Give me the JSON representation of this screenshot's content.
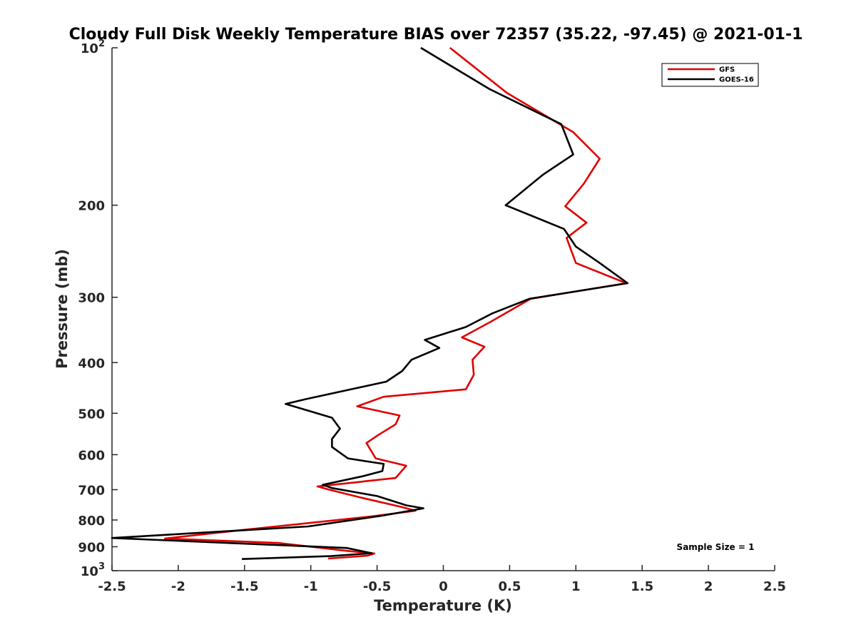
{
  "chart_data": {
    "type": "line",
    "title": "Cloudy Full Disk Weekly Temperature BIAS over 72357 (35.22, -97.45) @ 2021-01-1",
    "xlabel": "Temperature (K)",
    "ylabel": "Pressure (mb)",
    "xlim": [
      -2.5,
      2.5
    ],
    "ylim": [
      100,
      1000
    ],
    "y_scale": "log",
    "y_reversed": true,
    "x_ticks": [
      "-2.5",
      "-2",
      "-1.5",
      "-1",
      "-0.5",
      "0",
      "0.5",
      "1",
      "1.5",
      "2",
      "2.5"
    ],
    "y_ticks": [
      {
        "value": 100,
        "label": "10",
        "sup": "2"
      },
      {
        "value": 200,
        "label": "200",
        "sup": ""
      },
      {
        "value": 300,
        "label": "300",
        "sup": ""
      },
      {
        "value": 400,
        "label": "400",
        "sup": ""
      },
      {
        "value": 500,
        "label": "500",
        "sup": ""
      },
      {
        "value": 600,
        "label": "600",
        "sup": ""
      },
      {
        "value": 700,
        "label": "700",
        "sup": ""
      },
      {
        "value": 800,
        "label": "800",
        "sup": ""
      },
      {
        "value": 900,
        "label": "900",
        "sup": ""
      },
      {
        "value": 1000,
        "label": "10",
        "sup": "3"
      }
    ],
    "legend_position": "top-right",
    "grid": false,
    "annotation": "Sample Size = 1",
    "series": [
      {
        "name": "GFS",
        "color": "#e00000",
        "points": [
          [
            0.05,
            100
          ],
          [
            0.48,
            122
          ],
          [
            0.98,
            145
          ],
          [
            1.18,
            163
          ],
          [
            1.06,
            182
          ],
          [
            0.92,
            201
          ],
          [
            1.08,
            216
          ],
          [
            0.93,
            231
          ],
          [
            1.0,
            258
          ],
          [
            1.38,
            282
          ],
          [
            0.66,
            302
          ],
          [
            0.35,
            335
          ],
          [
            0.14,
            358
          ],
          [
            0.31,
            373
          ],
          [
            0.22,
            395
          ],
          [
            0.23,
            422
          ],
          [
            0.17,
            450
          ],
          [
            -0.45,
            465
          ],
          [
            -0.65,
            485
          ],
          [
            -0.33,
            505
          ],
          [
            -0.36,
            525
          ],
          [
            -0.49,
            550
          ],
          [
            -0.58,
            570
          ],
          [
            -0.51,
            610
          ],
          [
            -0.28,
            630
          ],
          [
            -0.36,
            665
          ],
          [
            -0.95,
            690
          ],
          [
            -0.86,
            700
          ],
          [
            -0.62,
            725
          ],
          [
            -0.32,
            755
          ],
          [
            -0.21,
            768
          ],
          [
            -0.53,
            787
          ],
          [
            -1.55,
            838
          ],
          [
            -2.1,
            868
          ],
          [
            -1.25,
            885
          ],
          [
            -0.7,
            918
          ],
          [
            -0.52,
            927
          ],
          [
            -0.57,
            936
          ],
          [
            -0.87,
            948
          ]
        ]
      },
      {
        "name": "GOES-16",
        "color": "#000000",
        "points": [
          [
            -0.17,
            100
          ],
          [
            0.35,
            120
          ],
          [
            0.89,
            140
          ],
          [
            0.98,
            160
          ],
          [
            0.75,
            175
          ],
          [
            0.47,
            200
          ],
          [
            0.91,
            222
          ],
          [
            1.0,
            240
          ],
          [
            1.18,
            258
          ],
          [
            1.39,
            282
          ],
          [
            0.65,
            302
          ],
          [
            0.37,
            322
          ],
          [
            0.17,
            342
          ],
          [
            -0.14,
            362
          ],
          [
            -0.03,
            375
          ],
          [
            -0.24,
            395
          ],
          [
            -0.31,
            415
          ],
          [
            -0.43,
            435
          ],
          [
            -1.04,
            470
          ],
          [
            -1.19,
            480
          ],
          [
            -0.84,
            510
          ],
          [
            -0.78,
            535
          ],
          [
            -0.84,
            560
          ],
          [
            -0.84,
            580
          ],
          [
            -0.72,
            610
          ],
          [
            -0.45,
            625
          ],
          [
            -0.46,
            645
          ],
          [
            -0.61,
            660
          ],
          [
            -0.91,
            685
          ],
          [
            -0.84,
            695
          ],
          [
            -0.5,
            720
          ],
          [
            -0.28,
            750
          ],
          [
            -0.15,
            760
          ],
          [
            -0.46,
            785
          ],
          [
            -1.02,
            823
          ],
          [
            -2.5,
            866
          ],
          [
            -0.73,
            905
          ],
          [
            -0.54,
            926
          ],
          [
            -0.85,
            938
          ],
          [
            -1.52,
            950
          ]
        ]
      }
    ]
  }
}
